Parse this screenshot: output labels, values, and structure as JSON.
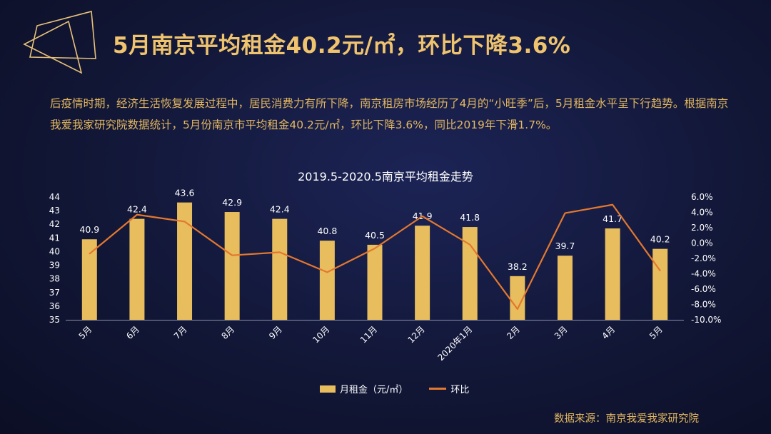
{
  "header": {
    "title": "5月南京平均租金40.2元/㎡，环比下降3.6%",
    "logo": "geometric-frame-logo"
  },
  "intro_text": "后疫情时期，经济生活恢复发展过程中，居民消费力有所下降，南京租房市场经历了4月的“小旺季”后，5月租金水平呈下行趋势。根据南京我爱我家研究院数据统计，5月份南京市平均租金40.2元/㎡，环比下降3.6%，同比2019年下滑1.7%。",
  "chart_data": {
    "type": "bar",
    "title": "2019.5-2020.5南京平均租金走势",
    "categories": [
      "5月",
      "6月",
      "7月",
      "8月",
      "9月",
      "10月",
      "11月",
      "12月",
      "2020年1月",
      "2月",
      "3月",
      "4月",
      "5月"
    ],
    "series": [
      {
        "name": "月租金（元/㎡）",
        "type": "bar",
        "axis": "left",
        "values": [
          40.9,
          42.4,
          43.6,
          42.9,
          42.4,
          40.8,
          40.5,
          41.9,
          41.8,
          38.2,
          39.7,
          41.7,
          40.2
        ]
      },
      {
        "name": "环比",
        "type": "line",
        "axis": "right",
        "values": [
          -1.4,
          3.7,
          2.8,
          -1.6,
          -1.2,
          -3.8,
          -0.7,
          3.5,
          -0.2,
          -8.6,
          3.9,
          5.0,
          -3.6
        ]
      }
    ],
    "ylim_left": [
      35,
      44
    ],
    "yticks_left": [
      "35",
      "36",
      "37",
      "38",
      "39",
      "40",
      "41",
      "42",
      "43",
      "44"
    ],
    "ylim_right": [
      -10,
      6
    ],
    "yticks_right": [
      "-10.0%",
      "-8.0%",
      "-6.0%",
      "-4.0%",
      "-2.0%",
      "0.0%",
      "2.0%",
      "4.0%",
      "6.0%"
    ],
    "grid": false,
    "legend": "bottom",
    "colors": {
      "bar": "#e8bd5e",
      "line": "#e3782f"
    }
  },
  "source": "数据来源：南京我爱我家研究院"
}
